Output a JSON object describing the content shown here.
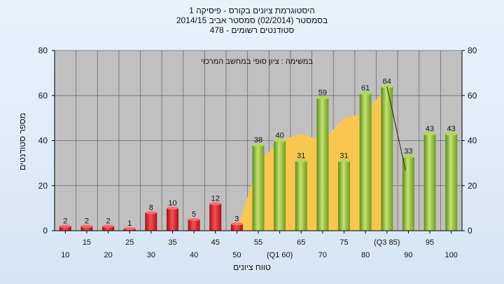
{
  "chart_data": {
    "type": "bar",
    "title_lines": [
      "היסטוגרמת ציונים בקורס - פיסיקה 1",
      "בסמסטר  (02/2014)  סמסטר אביב 2014/15",
      "סטודנטים רשומים - 478"
    ],
    "annotation": "במשימה : ציון סופי במחשב המרכזי",
    "xlabel": "טווח ציונים",
    "ylabel": "מספר סטודנטים",
    "ylim": [
      0,
      80
    ],
    "yticks": [
      0,
      20,
      40,
      60,
      80
    ],
    "grid": true,
    "categories": [
      "10",
      "15",
      "20",
      "25",
      "30",
      "35",
      "40",
      "45",
      "50",
      "55",
      "(Q1 60)",
      "65",
      "70",
      "75",
      "80",
      "(Q3 85)",
      "90",
      "95",
      "100"
    ],
    "values": [
      2,
      2,
      2,
      1,
      8,
      10,
      5,
      12,
      3,
      38,
      40,
      31,
      59,
      31,
      61,
      64,
      33,
      43,
      43
    ],
    "value_labels": [
      "2",
      "2",
      "2",
      "1",
      "8",
      "10",
      "5",
      "12",
      "3",
      "38",
      "40",
      "31",
      "59",
      "31",
      "61",
      "64",
      "33",
      "43",
      "43"
    ],
    "failing_count": 9,
    "area_series": {
      "x": [
        "50",
        "55",
        "(Q1 60)",
        "65",
        "70",
        "75",
        "80",
        "(Q3 85)"
      ],
      "values": [
        0,
        30,
        40,
        43,
        40,
        50,
        52,
        64
      ]
    },
    "colors": {
      "fail": "#d8232a",
      "pass": "#8dbb34",
      "area": "#f9c74f",
      "plot_bg": "#c0c0c0",
      "grid": "#6a6a6a"
    }
  }
}
